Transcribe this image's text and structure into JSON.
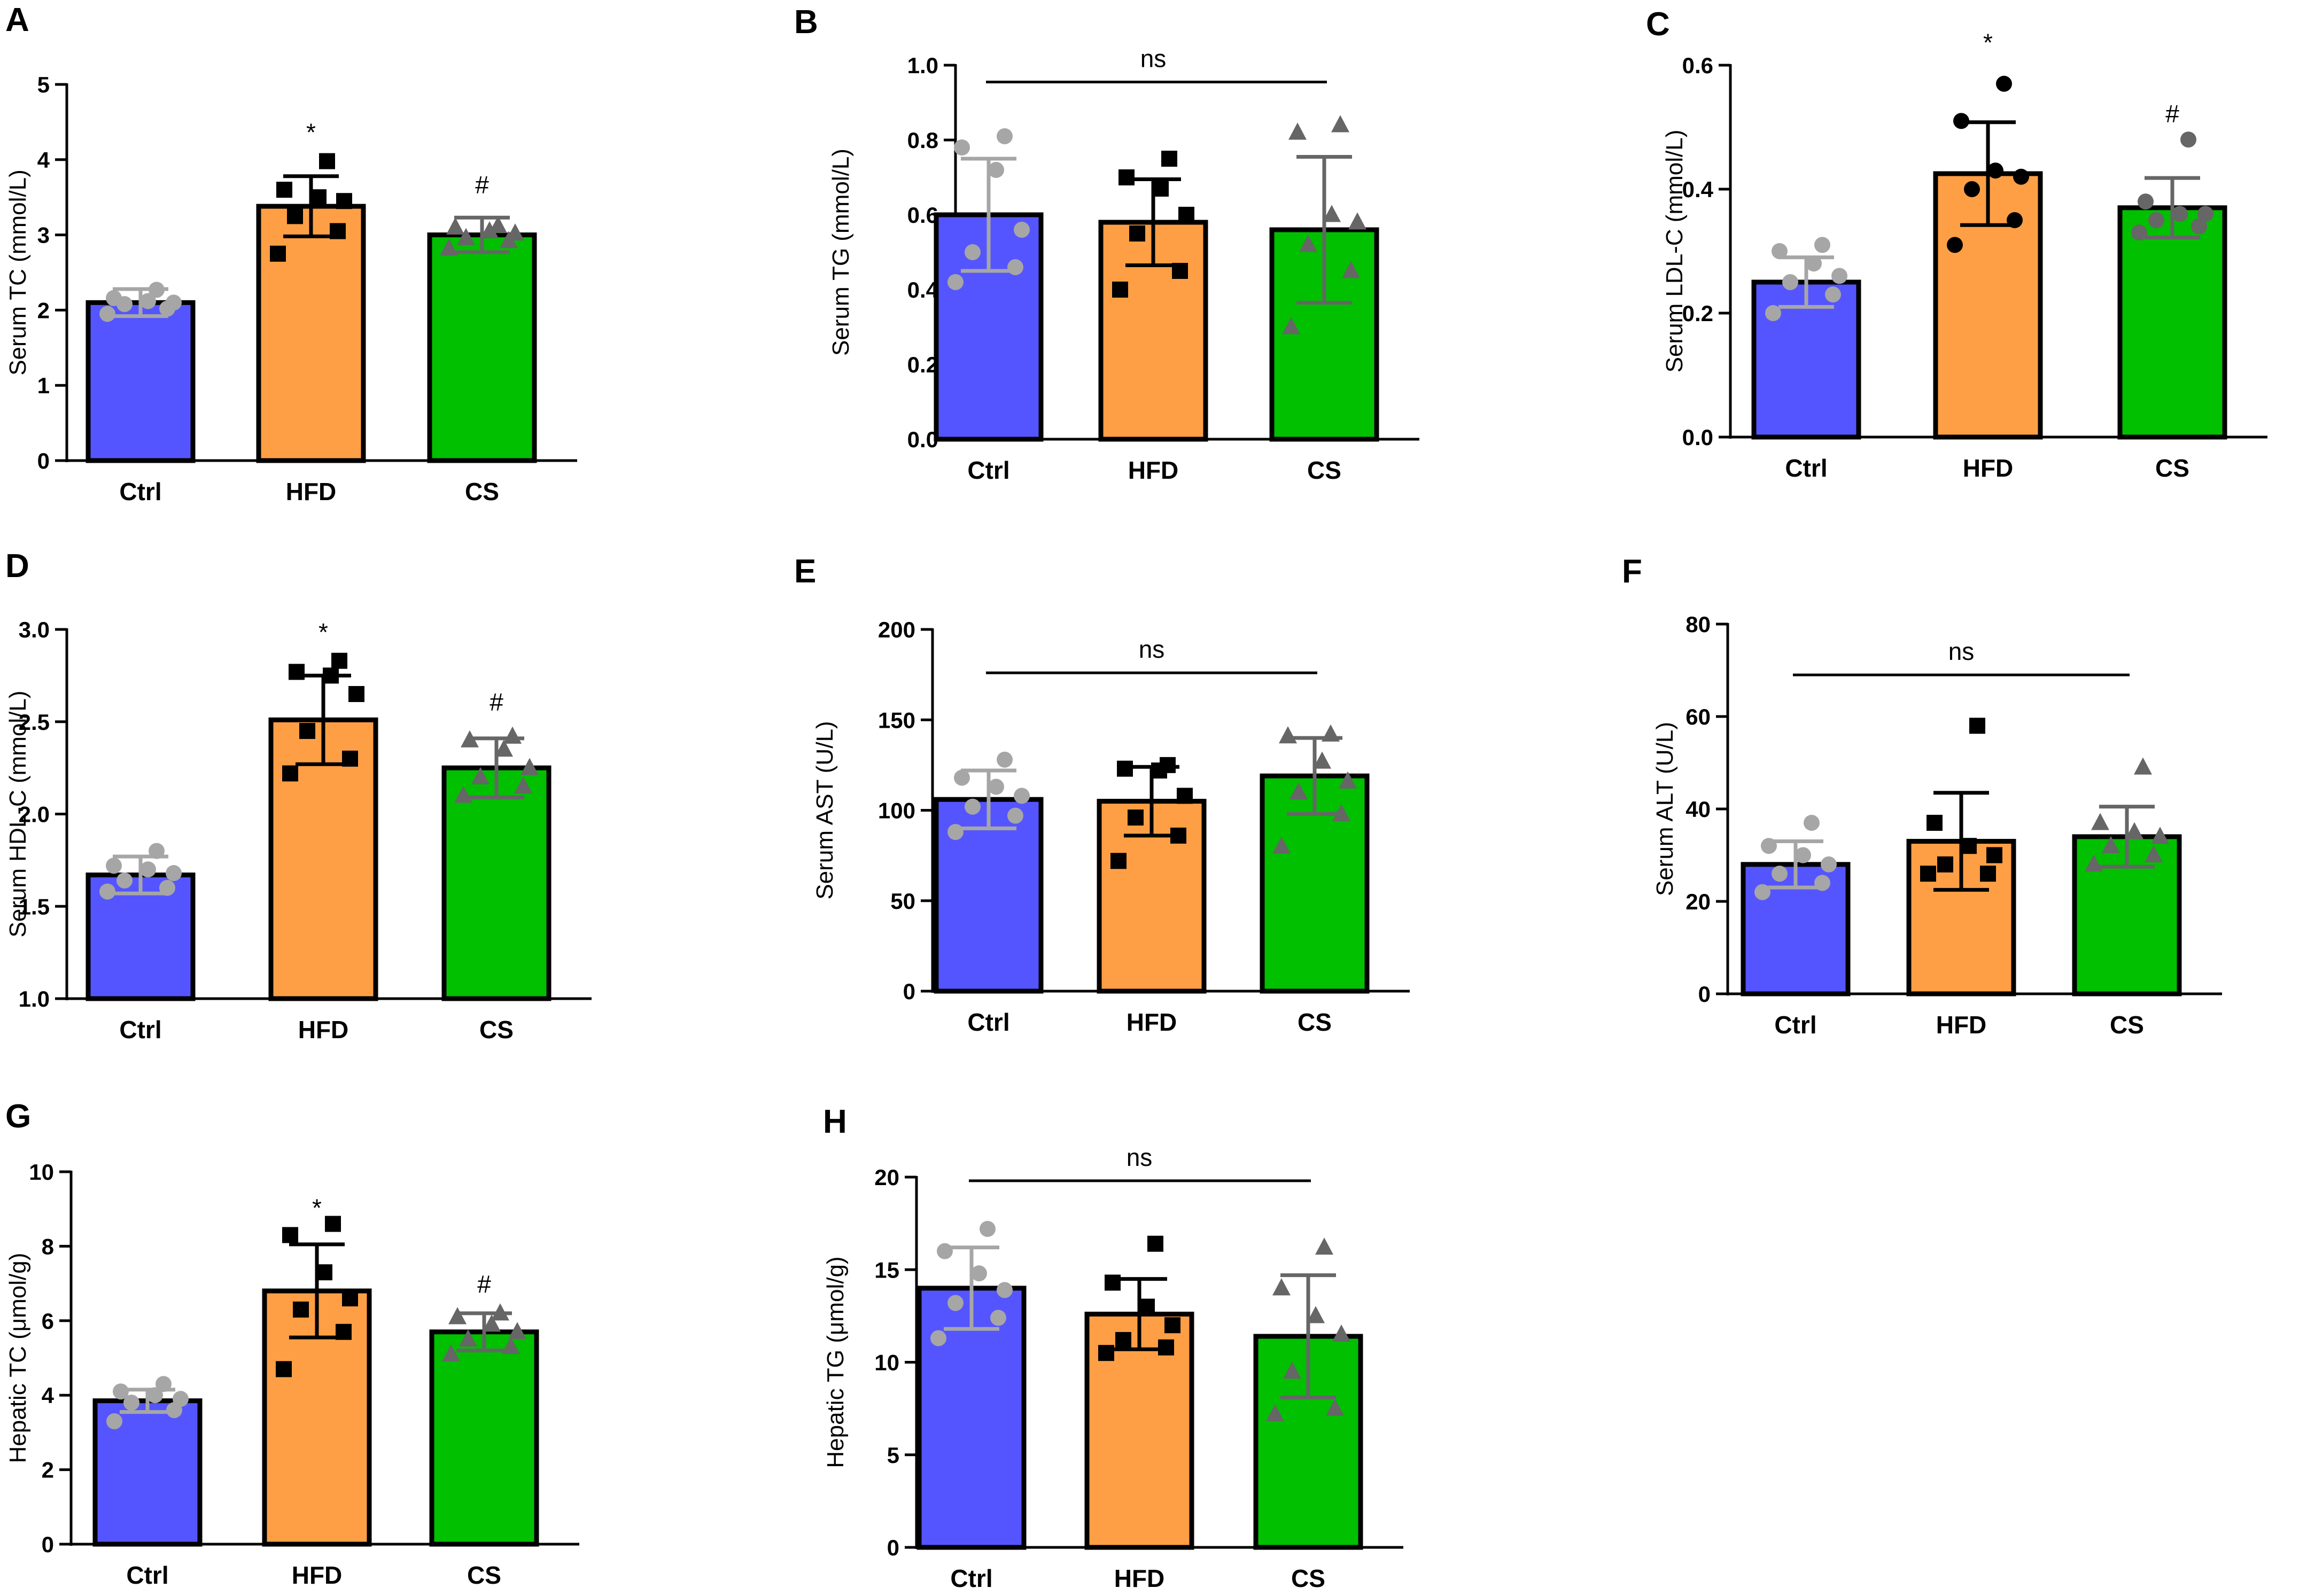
{
  "figure": {
    "colors": {
      "ctrl": "#5555ff",
      "hfd": "#ff9f45",
      "cs": "#00c000",
      "ctrl_points": "#a6a6a6",
      "hfd_points": "#000000",
      "cs_points": "#666666"
    }
  },
  "chart_data": [
    {
      "id": "A",
      "letter": "A",
      "type": "bar",
      "ylabel": "Serum TC (mmol/L)",
      "categories": [
        "Ctrl",
        "HFD",
        "CS"
      ],
      "ylim": [
        0,
        5
      ],
      "ticks": [
        0,
        1,
        2,
        3,
        4,
        5
      ],
      "tick_labels": [
        "0",
        "1",
        "2",
        "3",
        "4",
        "5"
      ],
      "values": [
        2.1,
        3.38,
        3.0
      ],
      "sd": [
        0.18,
        0.4,
        0.23
      ],
      "points": [
        [
          1.95,
          2.02,
          2.08,
          2.1,
          2.12,
          2.16,
          2.27
        ],
        [
          2.75,
          3.05,
          3.25,
          3.45,
          3.5,
          3.6,
          3.98
        ],
        [
          2.82,
          2.92,
          2.96,
          3.02,
          3.05,
          3.1,
          3.12
        ]
      ],
      "markers": [
        "circle",
        "square",
        "triangle"
      ],
      "annotations": [
        {
          "text": "*",
          "group": 1,
          "y": 4.35
        },
        {
          "text": "#",
          "group": 2,
          "y": 3.65
        }
      ]
    },
    {
      "id": "B",
      "letter": "B",
      "type": "bar",
      "ylabel": "Serum TG (mmol/L)",
      "categories": [
        "Ctrl",
        "HFD",
        "CS"
      ],
      "ylim": [
        0,
        1.0
      ],
      "ticks": [
        0,
        0.2,
        0.4,
        0.6,
        0.8,
        1.0
      ],
      "tick_labels": [
        "0.0",
        "0.2",
        "0.4",
        "0.6",
        "0.8",
        "1.0"
      ],
      "values": [
        0.6,
        0.58,
        0.56
      ],
      "sd": [
        0.15,
        0.115,
        0.195
      ],
      "points": [
        [
          0.42,
          0.46,
          0.5,
          0.56,
          0.72,
          0.78,
          0.81
        ],
        [
          0.4,
          0.45,
          0.55,
          0.6,
          0.67,
          0.7,
          0.75
        ],
        [
          0.3,
          0.45,
          0.52,
          0.58,
          0.6,
          0.82,
          0.84
        ]
      ],
      "markers": [
        "circle",
        "square",
        "triangle"
      ],
      "ns": {
        "text": "ns",
        "y_line": 0.955,
        "y_text": 1.0
      }
    },
    {
      "id": "C",
      "letter": "C",
      "type": "bar",
      "ylabel": "Serum LDL-C (mmol/L)",
      "categories": [
        "Ctrl",
        "HFD",
        "CS"
      ],
      "ylim": [
        0,
        0.6
      ],
      "ticks": [
        0,
        0.2,
        0.4,
        0.6
      ],
      "tick_labels": [
        "0.0",
        "0.2",
        "0.4",
        "0.6"
      ],
      "values": [
        0.25,
        0.425,
        0.37
      ],
      "sd": [
        0.04,
        0.083,
        0.048
      ],
      "points": [
        [
          0.2,
          0.23,
          0.25,
          0.26,
          0.28,
          0.3,
          0.31
        ],
        [
          0.31,
          0.35,
          0.4,
          0.42,
          0.43,
          0.51,
          0.57
        ],
        [
          0.33,
          0.34,
          0.35,
          0.36,
          0.36,
          0.38,
          0.48
        ]
      ],
      "markers": [
        "circle",
        "circle",
        "circle"
      ],
      "annotations": [
        {
          "text": "*",
          "group": 1,
          "y": 0.635
        },
        {
          "text": "#",
          "group": 2,
          "y": 0.52
        }
      ]
    },
    {
      "id": "D",
      "letter": "D",
      "type": "bar",
      "ylabel": "Serum HDL-C (mmol/L)",
      "categories": [
        "Ctrl",
        "HFD",
        "CS"
      ],
      "ylim": [
        1.0,
        3.0
      ],
      "ticks": [
        1.0,
        1.5,
        2.0,
        2.5,
        3.0
      ],
      "tick_labels": [
        "1.0",
        "1.5",
        "2.0",
        "2.5",
        "3.0"
      ],
      "values": [
        1.67,
        2.51,
        2.25
      ],
      "sd": [
        0.1,
        0.24,
        0.16
      ],
      "points": [
        [
          1.58,
          1.6,
          1.64,
          1.68,
          1.7,
          1.72,
          1.8
        ],
        [
          2.22,
          2.3,
          2.45,
          2.65,
          2.75,
          2.77,
          2.83
        ],
        [
          2.1,
          2.15,
          2.2,
          2.25,
          2.35,
          2.4,
          2.42
        ]
      ],
      "markers": [
        "circle",
        "square",
        "triangle"
      ],
      "annotations": [
        {
          "text": "*",
          "group": 1,
          "y": 2.98
        },
        {
          "text": "#",
          "group": 2,
          "y": 2.6
        }
      ]
    },
    {
      "id": "E",
      "letter": "E",
      "type": "bar",
      "ylabel": "Serum AST (U/L)",
      "categories": [
        "Ctrl",
        "HFD",
        "CS"
      ],
      "ylim": [
        0,
        200
      ],
      "ticks": [
        0,
        50,
        100,
        150,
        200
      ],
      "tick_labels": [
        "0",
        "50",
        "100",
        "150",
        "200"
      ],
      "values": [
        106,
        105,
        119
      ],
      "sd": [
        16,
        19,
        21
      ],
      "points": [
        [
          88,
          97,
          102,
          108,
          113,
          118,
          128
        ],
        [
          72,
          86,
          96,
          108,
          122,
          123,
          125
        ],
        [
          80,
          98,
          110,
          116,
          127,
          141,
          142
        ]
      ],
      "markers": [
        "circle",
        "square",
        "triangle"
      ],
      "ns": {
        "text": "ns",
        "y_line": 176,
        "y_text": 188
      }
    },
    {
      "id": "F",
      "letter": "F",
      "type": "bar",
      "ylabel": "Serum ALT (U/L)",
      "categories": [
        "Ctrl",
        "HFD",
        "CS"
      ],
      "ylim": [
        0,
        80
      ],
      "ticks": [
        0,
        20,
        40,
        60,
        80
      ],
      "tick_labels": [
        "0",
        "20",
        "40",
        "60",
        "80"
      ],
      "values": [
        28,
        33,
        34
      ],
      "sd": [
        5,
        10.5,
        6.5
      ],
      "points": [
        [
          22,
          24,
          26,
          28,
          30,
          32,
          37
        ],
        [
          26,
          26,
          28,
          30,
          32,
          37,
          58
        ],
        [
          28,
          30,
          32,
          34,
          35,
          37,
          49
        ]
      ],
      "markers": [
        "circle",
        "square",
        "triangle"
      ],
      "ns": {
        "text": "ns",
        "y_line": 69,
        "y_text": 74
      }
    },
    {
      "id": "G",
      "letter": "G",
      "type": "bar",
      "ylabel": "Hepatic TC (μmol/g)",
      "categories": [
        "Ctrl",
        "HFD",
        "CS"
      ],
      "ylim": [
        0,
        10
      ],
      "ticks": [
        0,
        2,
        4,
        6,
        8,
        10
      ],
      "tick_labels": [
        "0",
        "2",
        "4",
        "6",
        "8",
        "10"
      ],
      "values": [
        3.85,
        6.8,
        5.7
      ],
      "sd": [
        0.3,
        1.25,
        0.5
      ],
      "points": [
        [
          3.3,
          3.6,
          3.8,
          3.9,
          4.0,
          4.1,
          4.3
        ],
        [
          4.7,
          5.7,
          6.3,
          6.6,
          7.3,
          8.3,
          8.6
        ],
        [
          5.1,
          5.3,
          5.5,
          5.7,
          5.9,
          6.1,
          6.2
        ]
      ],
      "markers": [
        "circle",
        "square",
        "triangle"
      ],
      "annotations": [
        {
          "text": "*",
          "group": 1,
          "y": 9.0
        },
        {
          "text": "#",
          "group": 2,
          "y": 6.95
        }
      ]
    },
    {
      "id": "H",
      "letter": "H",
      "type": "bar",
      "ylabel": "Hepatic TG (μmol/g)",
      "categories": [
        "Ctrl",
        "HFD",
        "CS"
      ],
      "ylim": [
        0,
        20
      ],
      "ticks": [
        0,
        5,
        10,
        15,
        20
      ],
      "tick_labels": [
        "0",
        "5",
        "10",
        "15",
        "20"
      ],
      "values": [
        14.0,
        12.6,
        11.4
      ],
      "sd": [
        2.2,
        1.9,
        3.3
      ],
      "points": [
        [
          11.3,
          12.4,
          13.2,
          13.9,
          14.8,
          16.0,
          17.2
        ],
        [
          10.5,
          10.8,
          11.2,
          12.0,
          13.0,
          14.3,
          16.4
        ],
        [
          7.2,
          7.5,
          9.5,
          11.5,
          12.5,
          14.0,
          16.2
        ]
      ],
      "markers": [
        "circle",
        "square",
        "triangle"
      ],
      "ns": {
        "text": "ns",
        "y_line": 19.8,
        "y_text": 21.0
      }
    }
  ]
}
